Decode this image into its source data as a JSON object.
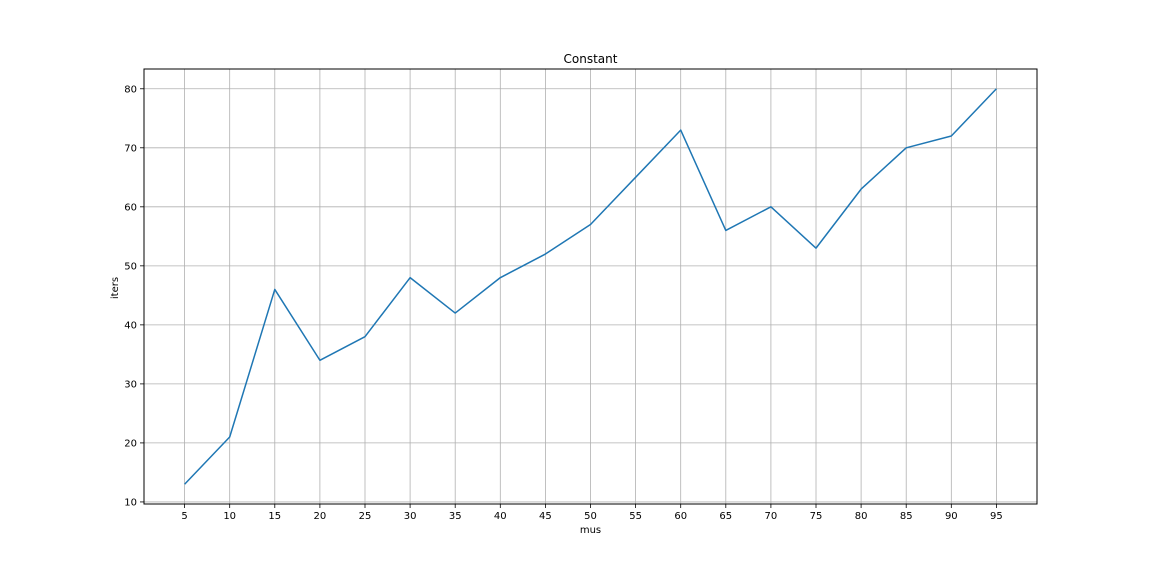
{
  "chart_data": {
    "type": "line",
    "title": "Constant",
    "xlabel": "mus",
    "ylabel": "iters",
    "x": [
      5,
      10,
      15,
      20,
      25,
      30,
      35,
      40,
      45,
      50,
      55,
      60,
      65,
      70,
      75,
      80,
      85,
      90,
      95
    ],
    "series": [
      {
        "values": [
          13,
          21,
          46,
          34,
          38,
          48,
          42,
          48,
          52,
          57,
          65,
          73,
          56,
          60,
          53,
          63,
          70,
          72,
          80
        ],
        "color": "#1f77b4"
      }
    ],
    "xticks": [
      5,
      10,
      15,
      20,
      25,
      30,
      35,
      40,
      45,
      50,
      55,
      60,
      65,
      70,
      75,
      80,
      85,
      90,
      95
    ],
    "yticks": [
      10,
      20,
      30,
      40,
      50,
      60,
      70,
      80
    ],
    "xlim": [
      0.5,
      99.5
    ],
    "ylim": [
      9.65,
      83.35
    ],
    "grid": true,
    "grid_color": "#b0b0b0",
    "legend": false
  }
}
